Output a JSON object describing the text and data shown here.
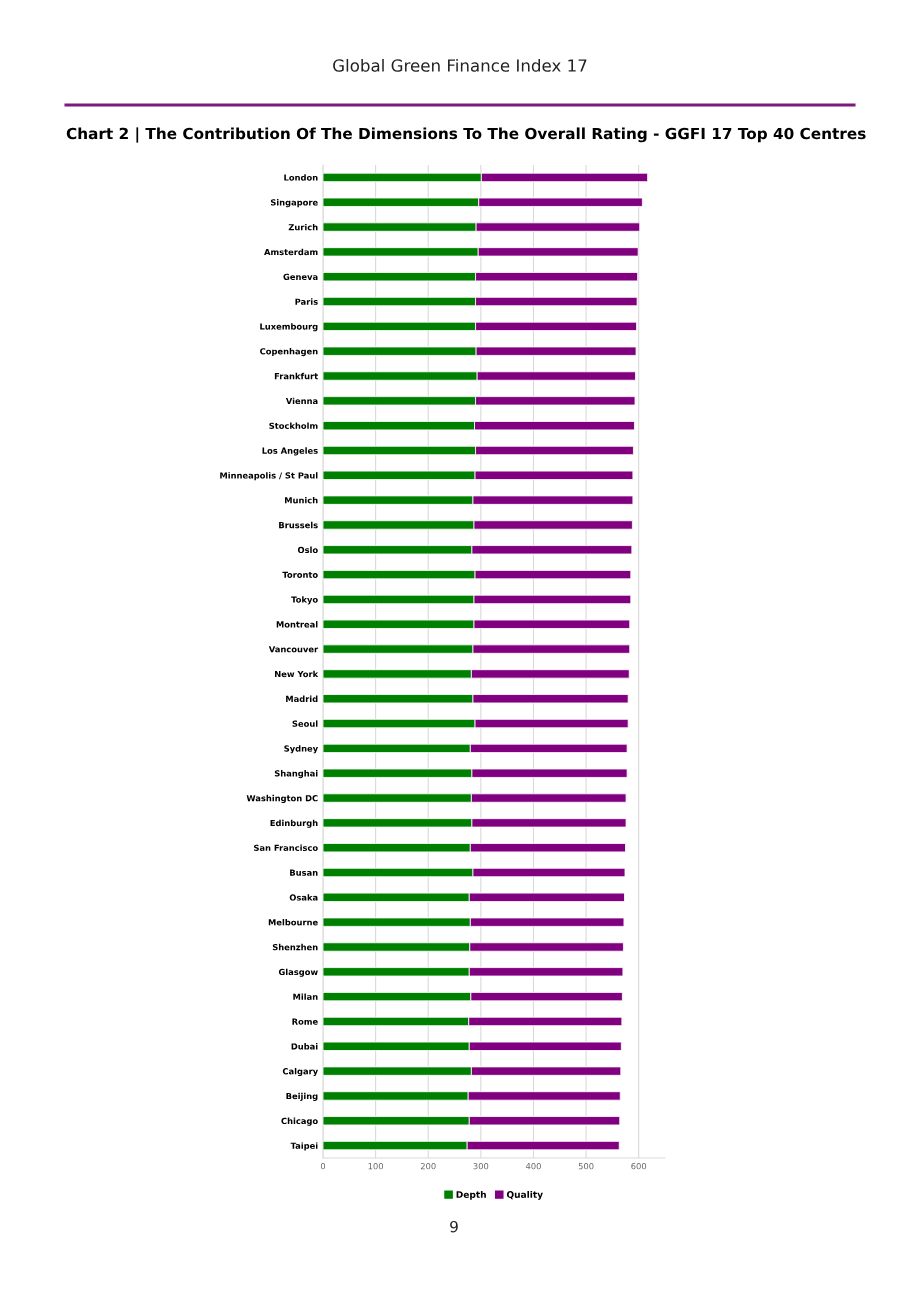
{
  "chart_data": {
    "type": "bar",
    "orientation": "horizontal",
    "stacked": true,
    "title": "Chart 2 | The Contribution Of The Dimensions To The Overall Rating - GGFI 17 Top 40 Centres",
    "annotations": [
      "Global Green Finance Index 17",
      "9"
    ],
    "categories": [
      "London",
      "Singapore",
      "Zurich",
      "Amsterdam",
      "Geneva",
      "Paris",
      "Luxembourg",
      "Copenhagen",
      "Frankfurt",
      "Vienna",
      "Stockholm",
      "Los Angeles",
      "Minneapolis / St Paul",
      "Munich",
      "Brussels",
      "Oslo",
      "Toronto",
      "Tokyo",
      "Montreal",
      "Vancouver",
      "New York",
      "Madrid",
      "Seoul",
      "Sydney",
      "Shanghai",
      "Washington DC",
      "Edinburgh",
      "San Francisco",
      "Busan",
      "Osaka",
      "Melbourne",
      "Shenzhen",
      "Glasgow",
      "Milan",
      "Rome",
      "Dubai",
      "Calgary",
      "Beijing",
      "Chicago",
      "Taipei"
    ],
    "series": [
      {
        "name": "Depth",
        "color": "#008000",
        "values": [
          301,
          296,
          291,
          295,
          290,
          290,
          290,
          291,
          293,
          290,
          288,
          290,
          289,
          285,
          287,
          283,
          289,
          287,
          287,
          285,
          282,
          285,
          289,
          280,
          283,
          282,
          283,
          280,
          285,
          278,
          280,
          279,
          278,
          281,
          277,
          278,
          282,
          276,
          278,
          274
        ]
      },
      {
        "name": "Quality",
        "color": "#800080",
        "values": [
          316,
          311,
          311,
          304,
          308,
          307,
          306,
          304,
          301,
          303,
          304,
          300,
          300,
          304,
          301,
          304,
          296,
          298,
          296,
          298,
          300,
          295,
          291,
          298,
          295,
          294,
          293,
          295,
          289,
          295,
          292,
          292,
          292,
          288,
          291,
          289,
          284,
          289,
          286,
          289
        ]
      }
    ],
    "xlim": [
      0,
      650
    ],
    "xticks": [
      0,
      100,
      200,
      300,
      400,
      500,
      600
    ],
    "grid": "x",
    "legend": "bottom"
  }
}
